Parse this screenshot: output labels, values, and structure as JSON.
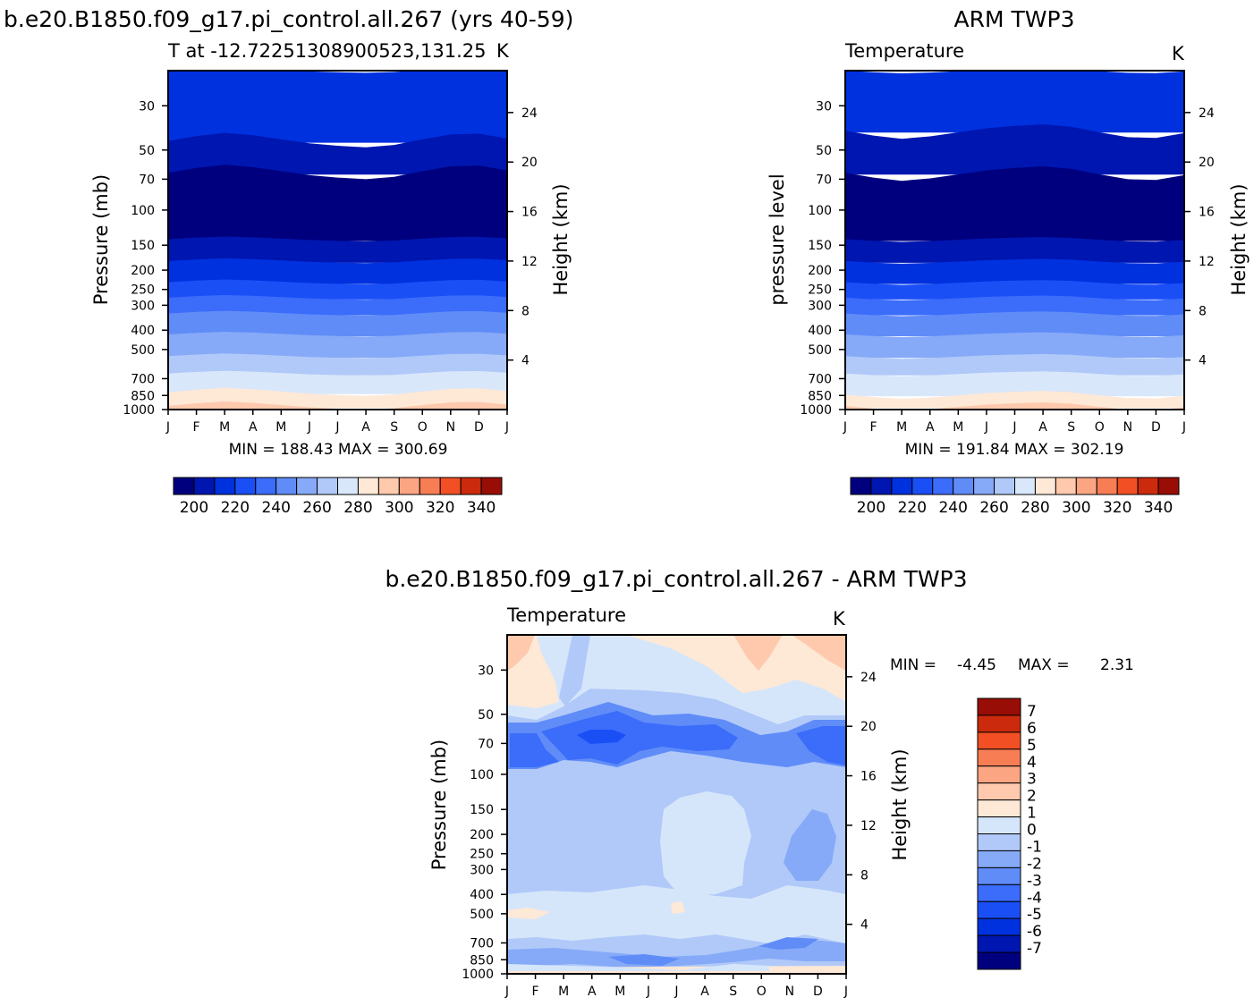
{
  "colors": {
    "abs_scale": [
      "#00007f",
      "#0016b0",
      "#0031df",
      "#1b4ff6",
      "#3b6cfa",
      "#608cf8",
      "#86aaf7",
      "#b0c9f9",
      "#d9e7fb",
      "#fee8d6",
      "#fec9ad",
      "#fba583",
      "#f77d55",
      "#f25024",
      "#cc2a0c",
      "#980e06",
      "#6e0000"
    ],
    "diff_scale": [
      "#00007f",
      "#0016b0",
      "#0031df",
      "#1b4ff6",
      "#3b6cfa",
      "#608cf8",
      "#86aaf7",
      "#b0c9f9",
      "#d6e6fa",
      "#fee8d6",
      "#fec9ad",
      "#fba583",
      "#f77d55",
      "#f25024",
      "#cc2a0c",
      "#980e06"
    ]
  },
  "chart_data": [
    {
      "type": "heatmap",
      "title": "b.e20.B1850.f09_g17.pi_control.all.267 (yrs 40-59)",
      "subtitle": "T at -12.72251308900523,131.25",
      "units": "K",
      "ylabel": "Pressure (mb)",
      "ylabel_right": "Height (km)",
      "x_ticks": [
        "J",
        "F",
        "M",
        "A",
        "M",
        "J",
        "J",
        "A",
        "S",
        "O",
        "N",
        "D",
        "J"
      ],
      "y_ticks": [
        "30",
        "50",
        "70",
        "100",
        "150",
        "200",
        "250",
        "300",
        "400",
        "500",
        "700",
        "850",
        "1000"
      ],
      "y_ticks_right": [
        "24",
        "20",
        "16",
        "12",
        "8",
        "4"
      ],
      "stats": "MIN = 188.43 MAX = 300.69",
      "colorbar_labels": [
        "200",
        "220",
        "240",
        "260",
        "280",
        "300",
        "320",
        "340"
      ],
      "band_levels": [
        {
          "p": 20,
          "color_index": 2
        },
        {
          "p": 45,
          "color_index": 1
        },
        {
          "p": 65,
          "color_index": 0
        },
        {
          "p": 140,
          "color_index": 1
        },
        {
          "p": 180,
          "color_index": 2
        },
        {
          "p": 230,
          "color_index": 3
        },
        {
          "p": 275,
          "color_index": 4
        },
        {
          "p": 330,
          "color_index": 5
        },
        {
          "p": 420,
          "color_index": 6
        },
        {
          "p": 540,
          "color_index": 7
        },
        {
          "p": 660,
          "color_index": 8
        },
        {
          "p": 820,
          "color_index": 9
        },
        {
          "p": 960,
          "color_index": 10
        }
      ]
    },
    {
      "type": "heatmap",
      "title": "ARM TWP3",
      "subtitle": "Temperature",
      "units": "K",
      "ylabel": "pressure level",
      "ylabel_right": "Height (km)",
      "x_ticks": [
        "J",
        "F",
        "M",
        "A",
        "M",
        "J",
        "J",
        "A",
        "S",
        "O",
        "N",
        "D",
        "J"
      ],
      "y_ticks": [
        "30",
        "50",
        "70",
        "100",
        "150",
        "200",
        "250",
        "300",
        "400",
        "500",
        "700",
        "850",
        "1000"
      ],
      "y_ticks_right": [
        "24",
        "20",
        "16",
        "12",
        "8",
        "4"
      ],
      "stats": "MIN = 191.84 MAX = 302.19",
      "colorbar_labels": [
        "200",
        "220",
        "240",
        "260",
        "280",
        "300",
        "320",
        "340"
      ],
      "band_levels": [
        {
          "p": 20,
          "color_index": 2
        },
        {
          "p": 40,
          "color_index": 1
        },
        {
          "p": 65,
          "color_index": 0
        },
        {
          "p": 140,
          "color_index": 1
        },
        {
          "p": 180,
          "color_index": 2
        },
        {
          "p": 230,
          "color_index": 3
        },
        {
          "p": 275,
          "color_index": 4
        },
        {
          "p": 330,
          "color_index": 5
        },
        {
          "p": 420,
          "color_index": 6
        },
        {
          "p": 540,
          "color_index": 7
        },
        {
          "p": 660,
          "color_index": 8
        },
        {
          "p": 840,
          "color_index": 9
        },
        {
          "p": 960,
          "color_index": 10
        }
      ]
    },
    {
      "type": "heatmap",
      "title": "b.e20.B1850.f09_g17.pi_control.all.267 - ARM TWP3",
      "subtitle": "Temperature",
      "units": "K",
      "ylabel": "Pressure (mb)",
      "ylabel_right": "Height (km)",
      "x_ticks": [
        "J",
        "F",
        "M",
        "A",
        "M",
        "J",
        "J",
        "A",
        "S",
        "O",
        "N",
        "D",
        "J"
      ],
      "y_ticks": [
        "30",
        "50",
        "70",
        "100",
        "150",
        "200",
        "250",
        "300",
        "400",
        "500",
        "700",
        "850",
        "1000"
      ],
      "y_ticks_right": [
        "24",
        "20",
        "16",
        "12",
        "8",
        "4"
      ],
      "stats_label": "MIN =",
      "stats_min": "-4.45",
      "stats_max_label": "MAX =",
      "stats_max": "2.31",
      "colorbar_labels": [
        "7",
        "6",
        "5",
        "4",
        "3",
        "2",
        "1",
        "0",
        "-1",
        "-2",
        "-3",
        "-4",
        "-5",
        "-6",
        "-7"
      ]
    }
  ]
}
